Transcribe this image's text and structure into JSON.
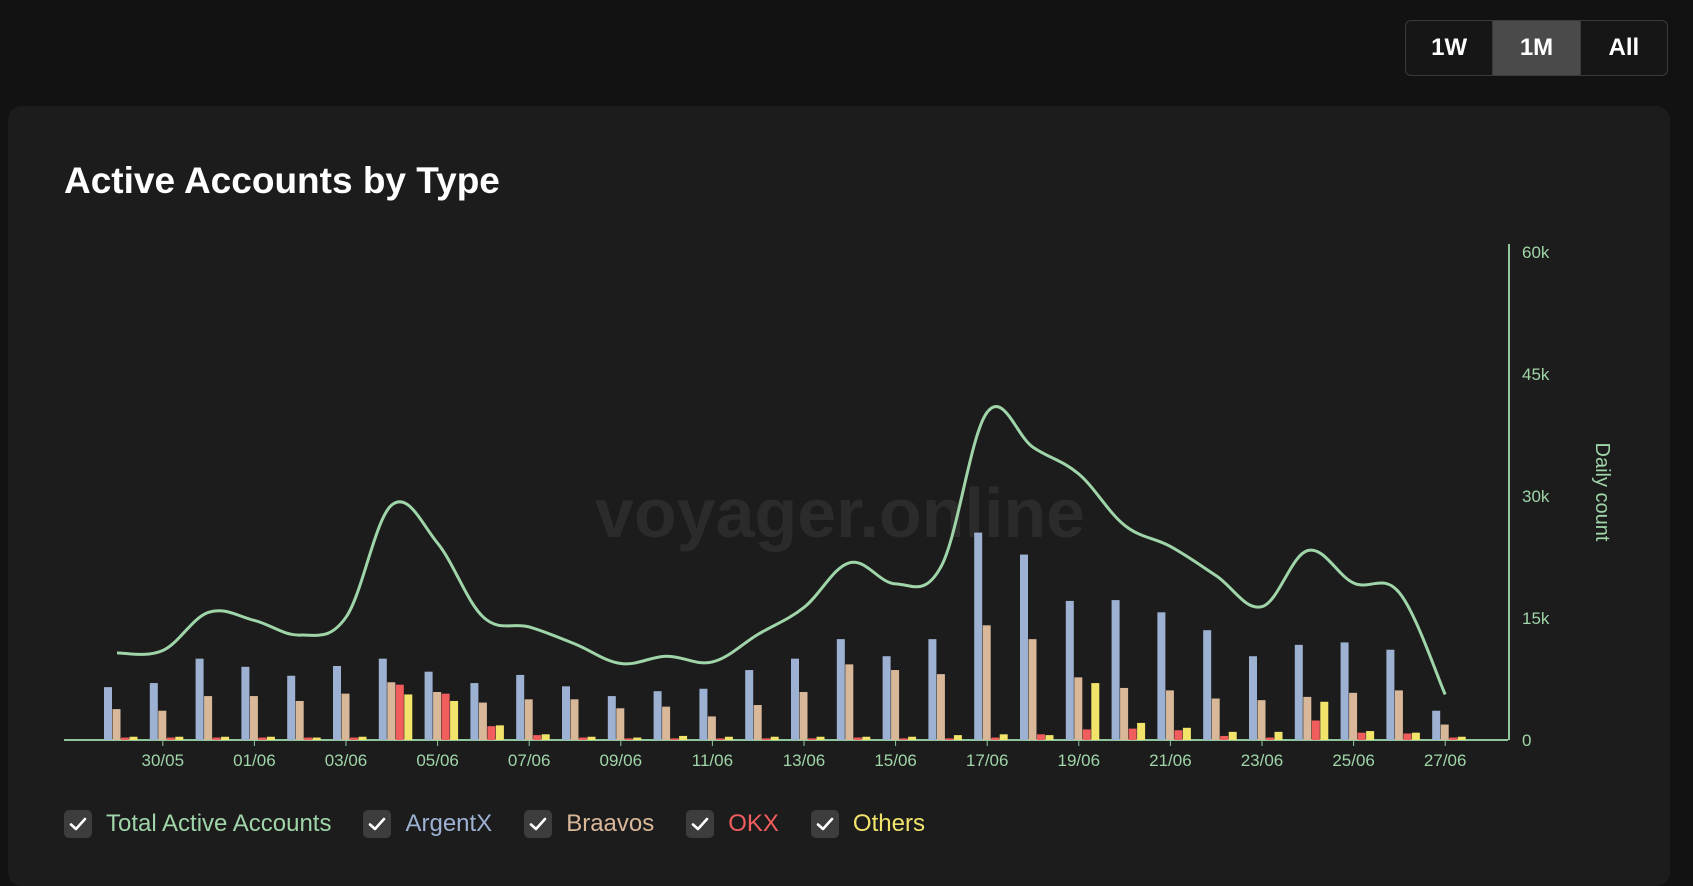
{
  "range_selector": {
    "options": [
      "1W",
      "1M",
      "All"
    ],
    "active": "1M"
  },
  "card": {
    "title": "Active Accounts by Type",
    "watermark": "voyager.online"
  },
  "legend": [
    {
      "label": "Total Active Accounts",
      "color": "#9fd5a8",
      "checked": true
    },
    {
      "label": "ArgentX",
      "color": "#9db1d3",
      "checked": true
    },
    {
      "label": "Braavos",
      "color": "#d9b89a",
      "checked": true
    },
    {
      "label": "OKX",
      "color": "#f15d5d",
      "checked": true
    },
    {
      "label": "Others",
      "color": "#f2e46b",
      "checked": true
    }
  ],
  "chart_data": {
    "type": "bar",
    "title": "Active Accounts by Type",
    "ylabel": "Daily count",
    "ylim": [
      0,
      60000
    ],
    "yticks": [
      "0",
      "15k",
      "30k",
      "45k",
      "60k"
    ],
    "xtick_labels": [
      "30/05",
      "01/06",
      "03/06",
      "05/06",
      "07/06",
      "09/06",
      "11/06",
      "13/06",
      "15/06",
      "17/06",
      "19/06",
      "21/06",
      "23/06",
      "25/06",
      "27/06"
    ],
    "categories": [
      "29/05",
      "30/05",
      "31/05",
      "01/06",
      "02/06",
      "03/06",
      "04/06",
      "05/06",
      "06/06",
      "07/06",
      "08/06",
      "09/06",
      "10/06",
      "11/06",
      "12/06",
      "13/06",
      "14/06",
      "15/06",
      "16/06",
      "17/06",
      "18/06",
      "19/06",
      "20/06",
      "21/06",
      "22/06",
      "23/06",
      "24/06",
      "25/06",
      "26/06",
      "27/06"
    ],
    "series": [
      {
        "name": "ArgentX",
        "type": "bar",
        "color": "#9db1d3",
        "values": [
          6500,
          7000,
          10000,
          9000,
          7900,
          9100,
          10000,
          8400,
          7000,
          8000,
          6600,
          5400,
          6000,
          6300,
          8600,
          10000,
          12400,
          10300,
          12400,
          25500,
          22800,
          17100,
          17200,
          15700,
          13500,
          10300,
          11700,
          12000,
          11100,
          3600
        ]
      },
      {
        "name": "Braavos",
        "type": "bar",
        "color": "#d9b89a",
        "values": [
          3800,
          3600,
          5400,
          5400,
          4800,
          5700,
          7100,
          5900,
          4600,
          5000,
          5000,
          3900,
          4100,
          2900,
          4300,
          5900,
          9300,
          8600,
          8100,
          14100,
          12400,
          7700,
          6400,
          6100,
          5100,
          4900,
          5300,
          5800,
          6100,
          1900
        ]
      },
      {
        "name": "OKX",
        "type": "bar",
        "color": "#f15d5d",
        "values": [
          300,
          300,
          300,
          300,
          300,
          300,
          6800,
          5700,
          1700,
          600,
          300,
          200,
          200,
          200,
          200,
          200,
          300,
          200,
          200,
          300,
          700,
          1300,
          1400,
          1200,
          500,
          300,
          2400,
          900,
          800,
          300
        ]
      },
      {
        "name": "Others",
        "type": "bar",
        "color": "#f2e46b",
        "values": [
          400,
          400,
          400,
          400,
          300,
          400,
          5600,
          4800,
          1800,
          700,
          400,
          300,
          500,
          400,
          400,
          400,
          400,
          400,
          600,
          700,
          600,
          7000,
          2100,
          1500,
          1000,
          1000,
          4700,
          1100,
          900,
          400
        ]
      },
      {
        "name": "Total Active Accounts",
        "type": "line",
        "color": "#9fd5a8",
        "values": [
          10700,
          11000,
          15700,
          14700,
          12900,
          15100,
          28900,
          24200,
          15100,
          13900,
          11800,
          9400,
          10300,
          9600,
          13000,
          16300,
          21800,
          19200,
          21400,
          40300,
          36000,
          32700,
          26400,
          23800,
          20200,
          16400,
          23300,
          19300,
          18100,
          5600
        ]
      }
    ]
  }
}
